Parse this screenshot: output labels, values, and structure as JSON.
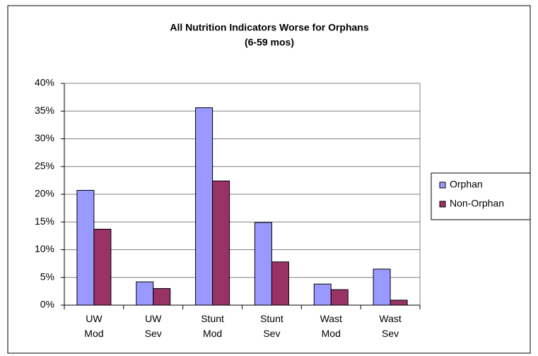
{
  "chart_data": {
    "type": "bar",
    "title": "All Nutrition Indicators Worse for Orphans",
    "subtitle": "(6-59 mos)",
    "categories": [
      "UW Mod",
      "UW Sev",
      "Stunt Mod",
      "Stunt Sev",
      "Wast Mod",
      "Wast Sev"
    ],
    "series": [
      {
        "name": "Orphan",
        "color": "#9999ff",
        "values": [
          20.7,
          4.2,
          35.6,
          14.9,
          3.8,
          6.5
        ]
      },
      {
        "name": "Non-Orphan",
        "color": "#993366",
        "values": [
          13.7,
          3.0,
          22.4,
          7.8,
          2.8,
          0.9
        ]
      }
    ],
    "ylim": [
      0,
      40
    ],
    "yticks": [
      {
        "value": 0,
        "label": "0%"
      },
      {
        "value": 5,
        "label": "5%"
      },
      {
        "value": 10,
        "label": "10%"
      },
      {
        "value": 15,
        "label": "15%"
      },
      {
        "value": 20,
        "label": "20%"
      },
      {
        "value": 25,
        "label": "25%"
      },
      {
        "value": 30,
        "label": "30%"
      },
      {
        "value": 35,
        "label": "35%"
      },
      {
        "value": 40,
        "label": "40%"
      }
    ],
    "grid": true,
    "legend": "right"
  }
}
